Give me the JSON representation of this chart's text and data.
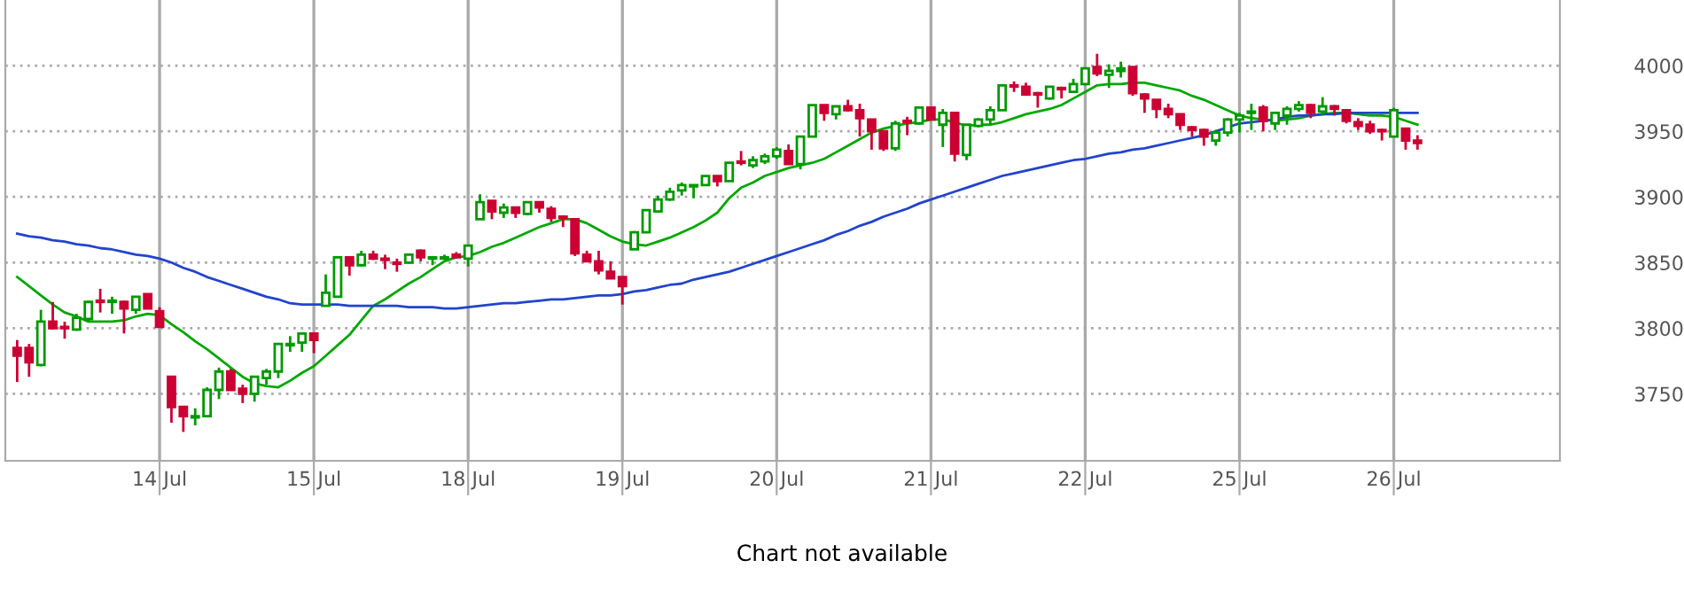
{
  "chart_data": {
    "type": "candlestick",
    "categories": [
      null,
      null,
      null,
      null,
      null,
      null,
      null,
      null,
      null,
      null,
      null,
      null,
      "14 Jul",
      null,
      null,
      null,
      null,
      null,
      null,
      null,
      null,
      null,
      null,
      null,
      null,
      "15 Jul",
      null,
      null,
      null,
      null,
      null,
      null,
      null,
      null,
      null,
      null,
      null,
      null,
      "18 Jul",
      null,
      null,
      null,
      null,
      null,
      null,
      null,
      null,
      null,
      null,
      null,
      null,
      "19 Jul",
      null,
      null,
      null,
      null,
      null,
      null,
      null,
      null,
      null,
      null,
      null,
      null,
      "20 Jul",
      null,
      null,
      null,
      null,
      null,
      null,
      null,
      null,
      null,
      null,
      null,
      null,
      "21 Jul",
      null,
      null,
      null,
      null,
      null,
      null,
      null,
      null,
      null,
      null,
      null,
      null,
      "22 Jul",
      null,
      null,
      null,
      null,
      null,
      null,
      null,
      null,
      null,
      null,
      null,
      null,
      "25 Jul",
      null,
      null,
      null,
      null,
      null,
      null,
      null,
      null,
      null,
      null,
      null,
      null,
      "26 Jul",
      null,
      null,
      null,
      null,
      null,
      null,
      null,
      null,
      null,
      null,
      null,
      null,
      null
    ],
    "ohlc": [
      [
        3785,
        3791,
        3759,
        3779
      ],
      [
        3785,
        3788,
        3763,
        3774
      ],
      [
        3772,
        3814,
        3771,
        3805
      ],
      [
        3805,
        3820,
        3799,
        3800
      ],
      [
        3801,
        3805,
        3792,
        3800
      ],
      [
        3799,
        3811,
        3798,
        3808
      ],
      [
        3807,
        3821,
        3805,
        3820
      ],
      [
        3821,
        3830,
        3812,
        3820
      ],
      [
        3820,
        3824,
        3811,
        3821
      ],
      [
        3820,
        3821,
        3796,
        3815
      ],
      [
        3814,
        3824,
        3811,
        3824
      ],
      [
        3826,
        3826,
        3815,
        3815
      ],
      [
        3813,
        3816,
        3801,
        3801
      ],
      [
        3763,
        3763,
        3728,
        3740
      ],
      [
        3740,
        3740,
        3721,
        3733
      ],
      [
        3732,
        3739,
        3726,
        3733
      ],
      [
        3733,
        3755,
        3733,
        3753
      ],
      [
        3753,
        3770,
        3746,
        3767
      ],
      [
        3767,
        3769,
        3753,
        3753
      ],
      [
        3754,
        3757,
        3743,
        3750
      ],
      [
        3750,
        3763,
        3744,
        3763
      ],
      [
        3762,
        3769,
        3757,
        3767
      ],
      [
        3767,
        3788,
        3762,
        3788
      ],
      [
        3787,
        3794,
        3782,
        3788
      ],
      [
        3789,
        3796,
        3782,
        3796
      ],
      [
        3796,
        3796,
        3781,
        3791
      ],
      [
        3817,
        3841,
        3817,
        3827
      ],
      [
        3824,
        3854,
        3824,
        3854
      ],
      [
        3854,
        3854,
        3840,
        3848
      ],
      [
        3848,
        3859,
        3847,
        3856
      ],
      [
        3856,
        3859,
        3852,
        3853
      ],
      [
        3853,
        3856,
        3845,
        3852
      ],
      [
        3850,
        3853,
        3843,
        3849
      ],
      [
        3850,
        3857,
        3849,
        3856
      ],
      [
        3859,
        3860,
        3851,
        3854
      ],
      [
        3853,
        3855,
        3848,
        3854
      ],
      [
        3853,
        3856,
        3852,
        3854
      ],
      [
        3856,
        3858,
        3853,
        3854
      ],
      [
        3853,
        3863,
        3847,
        3863
      ],
      [
        3883,
        3902,
        3883,
        3896
      ],
      [
        3897,
        3897,
        3883,
        3889
      ],
      [
        3888,
        3895,
        3884,
        3892
      ],
      [
        3892,
        3892,
        3884,
        3888
      ],
      [
        3887,
        3896,
        3886,
        3896
      ],
      [
        3896,
        3896,
        3888,
        3892
      ],
      [
        3891,
        3893,
        3881,
        3884
      ],
      [
        3885,
        3886,
        3877,
        3884
      ],
      [
        3883,
        3883,
        3855,
        3857
      ],
      [
        3856,
        3859,
        3851,
        3851
      ],
      [
        3851,
        3859,
        3841,
        3844
      ],
      [
        3843,
        3851,
        3838,
        3838
      ],
      [
        3839,
        3839,
        3818,
        3832
      ],
      [
        3860,
        3874,
        3860,
        3873
      ],
      [
        3873,
        3890,
        3873,
        3890
      ],
      [
        3889,
        3901,
        3888,
        3898
      ],
      [
        3898,
        3907,
        3897,
        3904
      ],
      [
        3905,
        3911,
        3901,
        3909
      ],
      [
        3908,
        3909,
        3899,
        3909
      ],
      [
        3909,
        3916,
        3909,
        3916
      ],
      [
        3916,
        3916,
        3908,
        3912
      ],
      [
        3912,
        3926,
        3912,
        3926
      ],
      [
        3927,
        3935,
        3924,
        3926
      ],
      [
        3924,
        3931,
        3922,
        3928
      ],
      [
        3927,
        3933,
        3925,
        3931
      ],
      [
        3931,
        3938,
        3929,
        3936
      ],
      [
        3935,
        3940,
        3925,
        3925
      ],
      [
        3925,
        3946,
        3921,
        3946
      ],
      [
        3946,
        3970,
        3946,
        3970
      ],
      [
        3970,
        3970,
        3958,
        3964
      ],
      [
        3963,
        3969,
        3959,
        3969
      ],
      [
        3969,
        3974,
        3965,
        3966
      ],
      [
        3966,
        3971,
        3946,
        3960
      ],
      [
        3959,
        3959,
        3936,
        3950
      ],
      [
        3950,
        3950,
        3935,
        3937
      ],
      [
        3937,
        3958,
        3935,
        3956
      ],
      [
        3958,
        3961,
        3947,
        3957
      ],
      [
        3956,
        3969,
        3955,
        3968
      ],
      [
        3968,
        3968,
        3959,
        3959
      ],
      [
        3955,
        3967,
        3938,
        3964
      ],
      [
        3964,
        3964,
        3927,
        3933
      ],
      [
        3932,
        3955,
        3928,
        3955
      ],
      [
        3954,
        3960,
        3953,
        3959
      ],
      [
        3959,
        3969,
        3955,
        3966
      ],
      [
        3966,
        3985,
        3966,
        3985
      ],
      [
        3985,
        3988,
        3980,
        3984
      ],
      [
        3984,
        3987,
        3977,
        3978
      ],
      [
        3979,
        3980,
        3968,
        3978
      ],
      [
        3975,
        3984,
        3974,
        3984
      ],
      [
        3983,
        3984,
        3975,
        3982
      ],
      [
        3980,
        3990,
        3980,
        3986
      ],
      [
        3986,
        3998,
        3985,
        3998
      ],
      [
        3999,
        4009,
        3992,
        3994
      ],
      [
        3993,
        4001,
        3983,
        3996
      ],
      [
        3996,
        4003,
        3991,
        3998
      ],
      [
        3999,
        3999,
        3977,
        3979
      ],
      [
        3978,
        3979,
        3964,
        3975
      ],
      [
        3974,
        3974,
        3960,
        3967
      ],
      [
        3967,
        3971,
        3960,
        3963
      ],
      [
        3963,
        3963,
        3951,
        3955
      ],
      [
        3953,
        3954,
        3946,
        3951
      ],
      [
        3951,
        3952,
        3939,
        3946
      ],
      [
        3943,
        3951,
        3939,
        3949
      ],
      [
        3949,
        3960,
        3946,
        3959
      ],
      [
        3959,
        3964,
        3949,
        3962
      ],
      [
        3964,
        3971,
        3951,
        3965
      ],
      [
        3968,
        3970,
        3950,
        3958
      ],
      [
        3956,
        3965,
        3951,
        3964
      ],
      [
        3962,
        3969,
        3955,
        3967
      ],
      [
        3967,
        3973,
        3965,
        3970
      ],
      [
        3970,
        3971,
        3960,
        3964
      ],
      [
        3965,
        3976,
        3962,
        3969
      ],
      [
        3969,
        3970,
        3962,
        3967
      ],
      [
        3966,
        3967,
        3956,
        3958
      ],
      [
        3957,
        3960,
        3951,
        3954
      ],
      [
        3955,
        3958,
        3948,
        3950
      ],
      [
        3951,
        3952,
        3943,
        3950
      ],
      [
        3946,
        3968,
        3946,
        3966
      ],
      [
        3952,
        3952,
        3936,
        3943
      ],
      [
        3943,
        3947,
        3936,
        3941
      ],
      null,
      null,
      null,
      null,
      null,
      null,
      null,
      null,
      null,
      null,
      null
    ],
    "colors": [
      "#cc0033",
      "#cc0033",
      "#009900",
      "#cc0033",
      "#cc0033",
      "#009900",
      "#009900",
      "#cc0033",
      "#009900",
      "#cc0033",
      "#009900",
      "#cc0033",
      "#cc0033",
      "#cc0033",
      "#cc0033",
      "#009900",
      "#009900",
      "#009900",
      "#cc0033",
      "#cc0033",
      "#009900",
      "#009900",
      "#009900",
      "#009900",
      "#009900",
      "#cc0033",
      "#009900",
      "#009900",
      "#cc0033",
      "#009900",
      "#cc0033",
      "#cc0033",
      "#cc0033",
      "#009900",
      "#cc0033",
      "#009900",
      "#009900",
      "#cc0033",
      "#009900",
      "#009900",
      "#cc0033",
      "#009900",
      "#cc0033",
      "#009900",
      "#cc0033",
      "#cc0033",
      "#cc0033",
      "#cc0033",
      "#cc0033",
      "#cc0033",
      "#cc0033",
      "#cc0033",
      "#009900",
      "#009900",
      "#009900",
      "#009900",
      "#009900",
      "#009900",
      "#009900",
      "#cc0033",
      "#009900",
      "#cc0033",
      "#009900",
      "#009900",
      "#009900",
      "#cc0033",
      "#009900",
      "#009900",
      "#cc0033",
      "#009900",
      "#cc0033",
      "#cc0033",
      "#cc0033",
      "#cc0033",
      "#009900",
      "#cc0033",
      "#009900",
      "#cc0033",
      "#009900",
      "#cc0033",
      "#009900",
      "#009900",
      "#009900",
      "#009900",
      "#cc0033",
      "#cc0033",
      "#cc0033",
      "#009900",
      "#cc0033",
      "#009900",
      "#009900",
      "#cc0033",
      "#009900",
      "#009900",
      "#cc0033",
      "#cc0033",
      "#cc0033",
      "#cc0033",
      "#cc0033",
      "#cc0033",
      "#cc0033",
      "#009900",
      "#009900",
      "#009900",
      "#009900",
      "#cc0033",
      "#009900",
      "#009900",
      "#009900",
      "#cc0033",
      "#009900",
      "#cc0033",
      "#cc0033",
      "#cc0033",
      "#cc0033",
      "#cc0033",
      "#009900",
      "#cc0033",
      "#cc0033",
      null,
      null,
      null,
      null,
      null,
      null,
      null,
      null,
      null,
      null,
      null
    ],
    "series": [
      {
        "type": "line",
        "color": "#00a800",
        "values": [
          3839,
          3832,
          3825,
          3818,
          3812,
          3809,
          3805,
          3805,
          3805,
          3806,
          3809,
          3811,
          3810,
          3803,
          3797,
          3790,
          3784,
          3777,
          3770,
          3763,
          3758,
          3756,
          3755,
          3760,
          3766,
          3771,
          3779,
          3787,
          3795,
          3806,
          3817,
          3822,
          3828,
          3834,
          3839,
          3845,
          3851,
          3854,
          3855,
          3858,
          3862,
          3865,
          3869,
          3873,
          3877,
          3880,
          3883,
          3883,
          3880,
          3875,
          3870,
          3866,
          3864,
          3863,
          3866,
          3869,
          3873,
          3877,
          3882,
          3888,
          3899,
          3907,
          3911,
          3916,
          3919,
          3922,
          3924,
          3926,
          3929,
          3934,
          3939,
          3944,
          3949,
          3952,
          3954,
          3956,
          3957,
          3959,
          3959,
          3957,
          3954,
          3955,
          3955,
          3957,
          3960,
          3963,
          3965,
          3967,
          3970,
          3975,
          3980,
          3985,
          3986,
          3986,
          3987,
          3987,
          3985,
          3983,
          3981,
          3977,
          3974,
          3970,
          3966,
          3962,
          3960,
          3959,
          3958,
          3959,
          3960,
          3962,
          3963,
          3964,
          3964,
          3963,
          3962,
          3962,
          3961,
          3958,
          3955,
          null,
          null,
          null,
          null,
          null,
          null,
          null,
          null,
          null,
          null,
          null
        ]
      },
      {
        "type": "line",
        "color": "#2244cc",
        "values": [
          3872,
          3870,
          3869,
          3867,
          3866,
          3864,
          3863,
          3861,
          3860,
          3858,
          3856,
          3855,
          3853,
          3850,
          3846,
          3843,
          3839,
          3836,
          3833,
          3830,
          3827,
          3824,
          3822,
          3819,
          3818,
          3818,
          3818,
          3818,
          3817,
          3817,
          3817,
          3817,
          3817,
          3816,
          3816,
          3816,
          3815,
          3815,
          3816,
          3817,
          3818,
          3819,
          3819,
          3820,
          3821,
          3822,
          3822,
          3823,
          3824,
          3825,
          3825,
          3826,
          3828,
          3829,
          3831,
          3833,
          3834,
          3837,
          3839,
          3841,
          3843,
          3846,
          3849,
          3852,
          3855,
          3858,
          3861,
          3864,
          3867,
          3871,
          3874,
          3878,
          3881,
          3885,
          3888,
          3891,
          3895,
          3898,
          3901,
          3904,
          3907,
          3910,
          3913,
          3916,
          3918,
          3920,
          3922,
          3924,
          3926,
          3928,
          3929,
          3931,
          3933,
          3934,
          3936,
          3937,
          3939,
          3941,
          3943,
          3945,
          3947,
          3950,
          3953,
          3956,
          3957,
          3958,
          3959,
          3961,
          3962,
          3962,
          3963,
          3963,
          3964,
          3964,
          3964,
          3964,
          3964,
          3964,
          3964,
          null,
          null,
          null,
          null,
          null,
          null,
          null,
          null,
          null,
          null,
          null
        ]
      }
    ],
    "ylim": [
      3699,
      4050
    ],
    "yticks": [
      3750,
      3800,
      3850,
      3900,
      3950,
      4000
    ],
    "grid": true,
    "annotations": [
      "Chart not available"
    ]
  }
}
